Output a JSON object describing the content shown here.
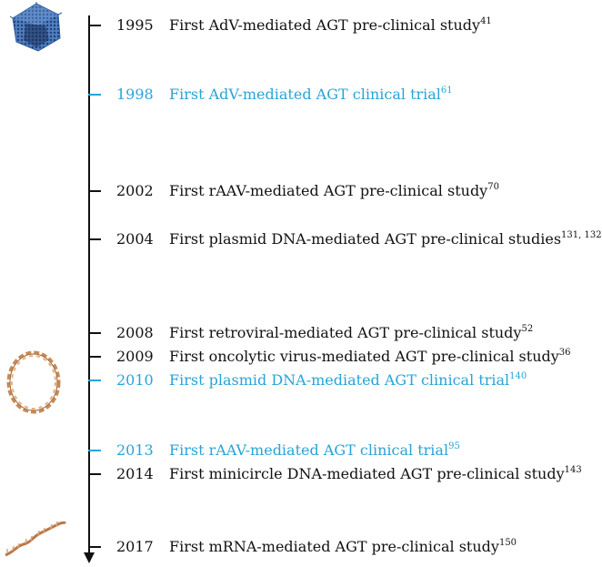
{
  "events": [
    {
      "year": "1995",
      "text": "First AdV-mediated AGT pre-clinical study",
      "ref": "41",
      "clinical": false
    },
    {
      "year": "1998",
      "text": "First AdV-mediated AGT clinical trial",
      "ref": "61",
      "clinical": true
    },
    {
      "year": "2002",
      "text": "First rAAV-mediated AGT pre-clinical study",
      "ref": "70",
      "clinical": false
    },
    {
      "year": "2004",
      "text": "First plasmid DNA-mediated AGT pre-clinical studies",
      "ref": "131, 132",
      "clinical": false
    },
    {
      "year": "2008",
      "text": "First retroviral-mediated AGT pre-clinical study",
      "ref": "52",
      "clinical": false
    },
    {
      "year": "2009",
      "text": "First oncolytic virus-mediated AGT pre-clinical study",
      "ref": "36",
      "clinical": false
    },
    {
      "year": "2010",
      "text": "First plasmid DNA-mediated AGT clinical trial",
      "ref": "140",
      "clinical": true
    },
    {
      "year": "2013",
      "text": "First rAAV-mediated AGT clinical trial",
      "ref": "95",
      "clinical": true
    },
    {
      "year": "2014",
      "text": "First minicircle DNA-mediated AGT pre-clinical study",
      "ref": "143",
      "clinical": false
    },
    {
      "year": "2017",
      "text": "First mRNA-mediated AGT pre-clinical study",
      "ref": "150",
      "clinical": false
    }
  ],
  "colors": {
    "preclinical": "#111111",
    "clinical": "#29a3d6",
    "virus": "#3a66a8",
    "plasmid": "#c98a52",
    "mrna": "#b9794a"
  },
  "illustrations": [
    "adenovirus-icon",
    "plasmid-dna-icon",
    "mrna-strand-icon"
  ]
}
